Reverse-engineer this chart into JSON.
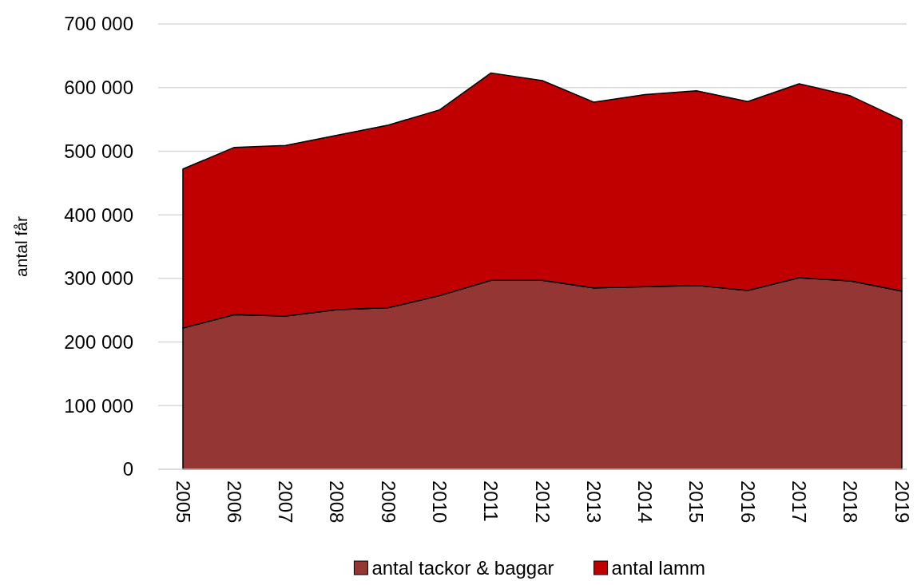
{
  "chart_data": {
    "type": "area",
    "stacked": true,
    "ylabel": "antal får",
    "categories": [
      "2005",
      "2006",
      "2007",
      "2008",
      "2009",
      "2010",
      "2011",
      "2012",
      "2013",
      "2014",
      "2015",
      "2016",
      "2017",
      "2018",
      "2019"
    ],
    "series": [
      {
        "name": "antal tackor & baggar",
        "color": "#943634",
        "values": [
          222000,
          243000,
          241000,
          251000,
          254000,
          273000,
          297000,
          297000,
          285000,
          287000,
          289000,
          281000,
          301000,
          296000,
          280000
        ]
      },
      {
        "name": "antal lamm",
        "color": "#c00000",
        "values": [
          250000,
          263000,
          268000,
          274000,
          287000,
          292000,
          326000,
          314000,
          292000,
          302000,
          306000,
          297000,
          305000,
          291000,
          269000
        ]
      }
    ],
    "ylim": [
      0,
      700000
    ],
    "yticks": [
      0,
      {
        "value": 100000,
        "label": "100 000"
      },
      {
        "value": 200000,
        "label": "200 000"
      },
      {
        "value": 300000,
        "label": "300 000"
      },
      {
        "value": 400000,
        "label": "400 000"
      },
      {
        "value": 500000,
        "label": "500 000"
      },
      {
        "value": 600000,
        "label": "600 000"
      },
      {
        "value": 700000,
        "label": "700 000"
      }
    ],
    "grid": "y",
    "legend": "bottom"
  }
}
